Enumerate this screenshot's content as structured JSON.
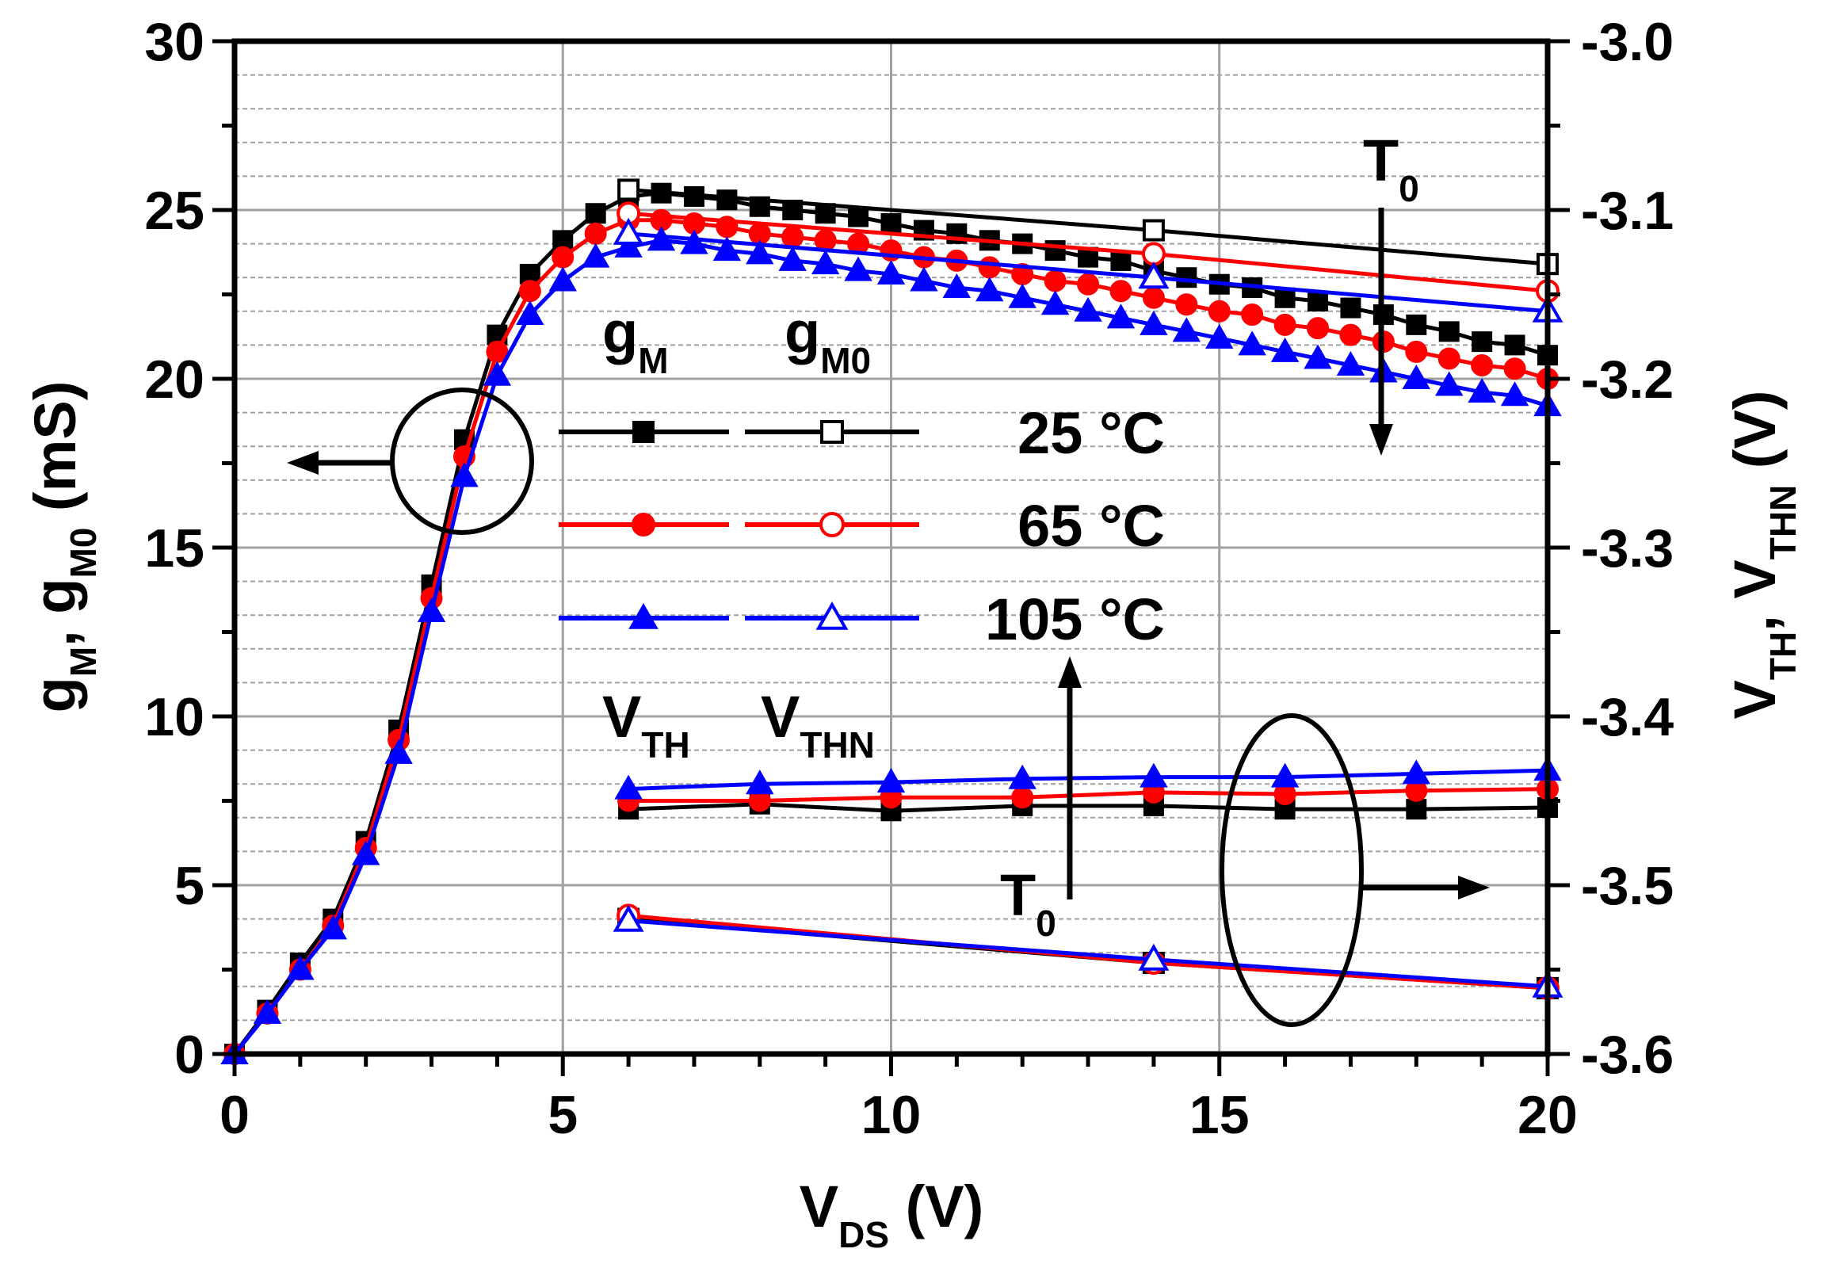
{
  "chart_data": {
    "type": "line",
    "x_axis": {
      "label": "V",
      "label_sub": "DS",
      "label_tail": " (V)",
      "range": [
        0,
        20
      ],
      "ticks": [
        0,
        5,
        10,
        15,
        20
      ],
      "tick_labels": [
        "0",
        "5",
        "10",
        "15",
        "20"
      ]
    },
    "y_left": {
      "label_parts": [
        {
          "t": "g",
          "s": "M"
        },
        {
          "t": ", g",
          "s": "M0"
        },
        {
          "t": " (mS)",
          "s": ""
        }
      ],
      "range": [
        0,
        30
      ],
      "ticks": [
        0,
        5,
        10,
        15,
        20,
        25,
        30
      ],
      "tick_labels": [
        "0",
        "5",
        "10",
        "15",
        "20",
        "25",
        "30"
      ]
    },
    "y_right": {
      "label_parts": [
        {
          "t": "V",
          "s": "TH"
        },
        {
          "t": ", V",
          "s": "THN"
        },
        {
          "t": " (V)",
          "s": ""
        }
      ],
      "range": [
        -3.6,
        -3.0
      ],
      "ticks": [
        -3.6,
        -3.5,
        -3.4,
        -3.3,
        -3.2,
        -3.1,
        -3.0
      ],
      "tick_labels": [
        "-3.6",
        "-3.5",
        "-3.4",
        "-3.3",
        "-3.2",
        "-3.1",
        "-3.0"
      ]
    },
    "grid": true,
    "series": [
      {
        "name": "gM 25 °C",
        "axis": "left",
        "color": "#000000",
        "marker": "square",
        "filled": true,
        "x": [
          0,
          0.5,
          1,
          1.5,
          2,
          2.5,
          3,
          3.5,
          4,
          4.5,
          5,
          5.5,
          6,
          6.5,
          7,
          7.5,
          8,
          8.5,
          9,
          9.5,
          10,
          10.5,
          11,
          11.5,
          12,
          12.5,
          13,
          13.5,
          14,
          14.5,
          15,
          15.5,
          16,
          16.5,
          17,
          17.5,
          18,
          18.5,
          19,
          19.5,
          20
        ],
        "y": [
          0,
          1.3,
          2.7,
          4.0,
          6.3,
          9.6,
          13.9,
          18.2,
          21.3,
          23.1,
          24.1,
          24.9,
          25.4,
          25.5,
          25.4,
          25.3,
          25.1,
          25.0,
          24.9,
          24.8,
          24.6,
          24.4,
          24.3,
          24.1,
          24.0,
          23.8,
          23.6,
          23.5,
          23.2,
          23.0,
          22.8,
          22.7,
          22.4,
          22.3,
          22.1,
          21.9,
          21.6,
          21.4,
          21.1,
          21.0,
          20.7
        ]
      },
      {
        "name": "gM 65 °C",
        "axis": "left",
        "color": "#ff0000",
        "marker": "circle",
        "filled": true,
        "x": [
          0,
          0.5,
          1,
          1.5,
          2,
          2.5,
          3,
          3.5,
          4,
          4.5,
          5,
          5.5,
          6,
          6.5,
          7,
          7.5,
          8,
          8.5,
          9,
          9.5,
          10,
          10.5,
          11,
          11.5,
          12,
          12.5,
          13,
          13.5,
          14,
          14.5,
          15,
          15.5,
          16,
          16.5,
          17,
          17.5,
          18,
          18.5,
          19,
          19.5,
          20
        ],
        "y": [
          0,
          1.2,
          2.5,
          3.8,
          6.1,
          9.3,
          13.5,
          17.7,
          20.8,
          22.6,
          23.6,
          24.3,
          24.7,
          24.7,
          24.6,
          24.5,
          24.3,
          24.2,
          24.1,
          24.0,
          23.8,
          23.6,
          23.5,
          23.3,
          23.1,
          22.9,
          22.8,
          22.6,
          22.4,
          22.2,
          22.0,
          21.9,
          21.6,
          21.5,
          21.3,
          21.1,
          20.8,
          20.6,
          20.4,
          20.3,
          20.0
        ]
      },
      {
        "name": "gM 105 °C",
        "axis": "left",
        "color": "#0000ff",
        "marker": "triangle",
        "filled": true,
        "x": [
          0,
          0.5,
          1,
          1.5,
          2,
          2.5,
          3,
          3.5,
          4,
          4.5,
          5,
          5.5,
          6,
          6.5,
          7,
          7.5,
          8,
          8.5,
          9,
          9.5,
          10,
          10.5,
          11,
          11.5,
          12,
          12.5,
          13,
          13.5,
          14,
          14.5,
          15,
          15.5,
          16,
          16.5,
          17,
          17.5,
          18,
          18.5,
          19,
          19.5,
          20
        ],
        "y": [
          0,
          1.2,
          2.5,
          3.7,
          5.9,
          8.9,
          13.1,
          17.1,
          20.1,
          21.9,
          22.9,
          23.6,
          23.9,
          24.1,
          24.0,
          23.8,
          23.7,
          23.5,
          23.4,
          23.2,
          23.1,
          22.9,
          22.7,
          22.6,
          22.4,
          22.2,
          22.0,
          21.8,
          21.6,
          21.4,
          21.2,
          21.0,
          20.8,
          20.6,
          20.4,
          20.2,
          20.0,
          19.8,
          19.6,
          19.5,
          19.2
        ]
      },
      {
        "name": "gM0 25 °C",
        "axis": "left",
        "color": "#000000",
        "marker": "square",
        "filled": false,
        "x": [
          6,
          14,
          20
        ],
        "y": [
          25.6,
          24.4,
          23.4
        ]
      },
      {
        "name": "gM0 65 °C",
        "axis": "left",
        "color": "#ff0000",
        "marker": "circle",
        "filled": false,
        "x": [
          6,
          14,
          20
        ],
        "y": [
          24.9,
          23.7,
          22.6
        ]
      },
      {
        "name": "gM0 105 °C",
        "axis": "left",
        "color": "#0000ff",
        "marker": "triangle",
        "filled": false,
        "x": [
          6,
          14,
          20
        ],
        "y": [
          24.3,
          23.0,
          22.0
        ]
      },
      {
        "name": "VTH 25 °C",
        "axis": "right",
        "color": "#000000",
        "marker": "square",
        "filled": true,
        "x": [
          6,
          8,
          10,
          12,
          14,
          16,
          18,
          20
        ],
        "y": [
          -3.455,
          -3.452,
          -3.456,
          -3.453,
          -3.453,
          -3.455,
          -3.455,
          -3.454
        ]
      },
      {
        "name": "VTH 65 °C",
        "axis": "right",
        "color": "#ff0000",
        "marker": "circle",
        "filled": true,
        "x": [
          6,
          8,
          10,
          12,
          14,
          16,
          18,
          20
        ],
        "y": [
          -3.45,
          -3.45,
          -3.448,
          -3.448,
          -3.445,
          -3.446,
          -3.444,
          -3.443
        ]
      },
      {
        "name": "VTH 105 °C",
        "axis": "right",
        "color": "#0000ff",
        "marker": "triangle",
        "filled": true,
        "x": [
          6,
          8,
          10,
          12,
          14,
          16,
          18,
          20
        ],
        "y": [
          -3.443,
          -3.44,
          -3.439,
          -3.437,
          -3.436,
          -3.436,
          -3.434,
          -3.432
        ]
      },
      {
        "name": "VTHN 25 °C",
        "axis": "right",
        "color": "#000000",
        "marker": "square",
        "filled": false,
        "x": [
          6,
          14,
          20
        ],
        "y": [
          -3.52,
          -3.546,
          -3.561
        ]
      },
      {
        "name": "VTHN 65 °C",
        "axis": "right",
        "color": "#ff0000",
        "marker": "circle",
        "filled": false,
        "x": [
          6,
          14,
          20
        ],
        "y": [
          -3.518,
          -3.546,
          -3.561
        ]
      },
      {
        "name": "VTHN 105 °C",
        "axis": "right",
        "color": "#0000ff",
        "marker": "triangle",
        "filled": false,
        "x": [
          6,
          14,
          20
        ],
        "y": [
          -3.521,
          -3.544,
          -3.56
        ]
      }
    ],
    "legend": {
      "placement": "center",
      "heading_gm": {
        "t": "g",
        "s": "M"
      },
      "heading_gm0": {
        "t": "g",
        "s": "M0"
      },
      "heading_vth": {
        "t": "V",
        "s": "TH"
      },
      "heading_vthn": {
        "t": "V",
        "s": "THN"
      },
      "entries": [
        {
          "label": "25 °C",
          "color": "#000000",
          "marker": "square"
        },
        {
          "label": "65 °C",
          "color": "#ff0000",
          "marker": "circle"
        },
        {
          "label": "105 °C",
          "color": "#0000ff",
          "marker": "triangle"
        }
      ]
    },
    "annotations": [
      {
        "text": "T",
        "sub": "0",
        "note": "arrow down: gM decreases with temperature"
      },
      {
        "text": "T",
        "sub": "0",
        "note": "arrow up: VTH increases with temperature"
      }
    ]
  }
}
